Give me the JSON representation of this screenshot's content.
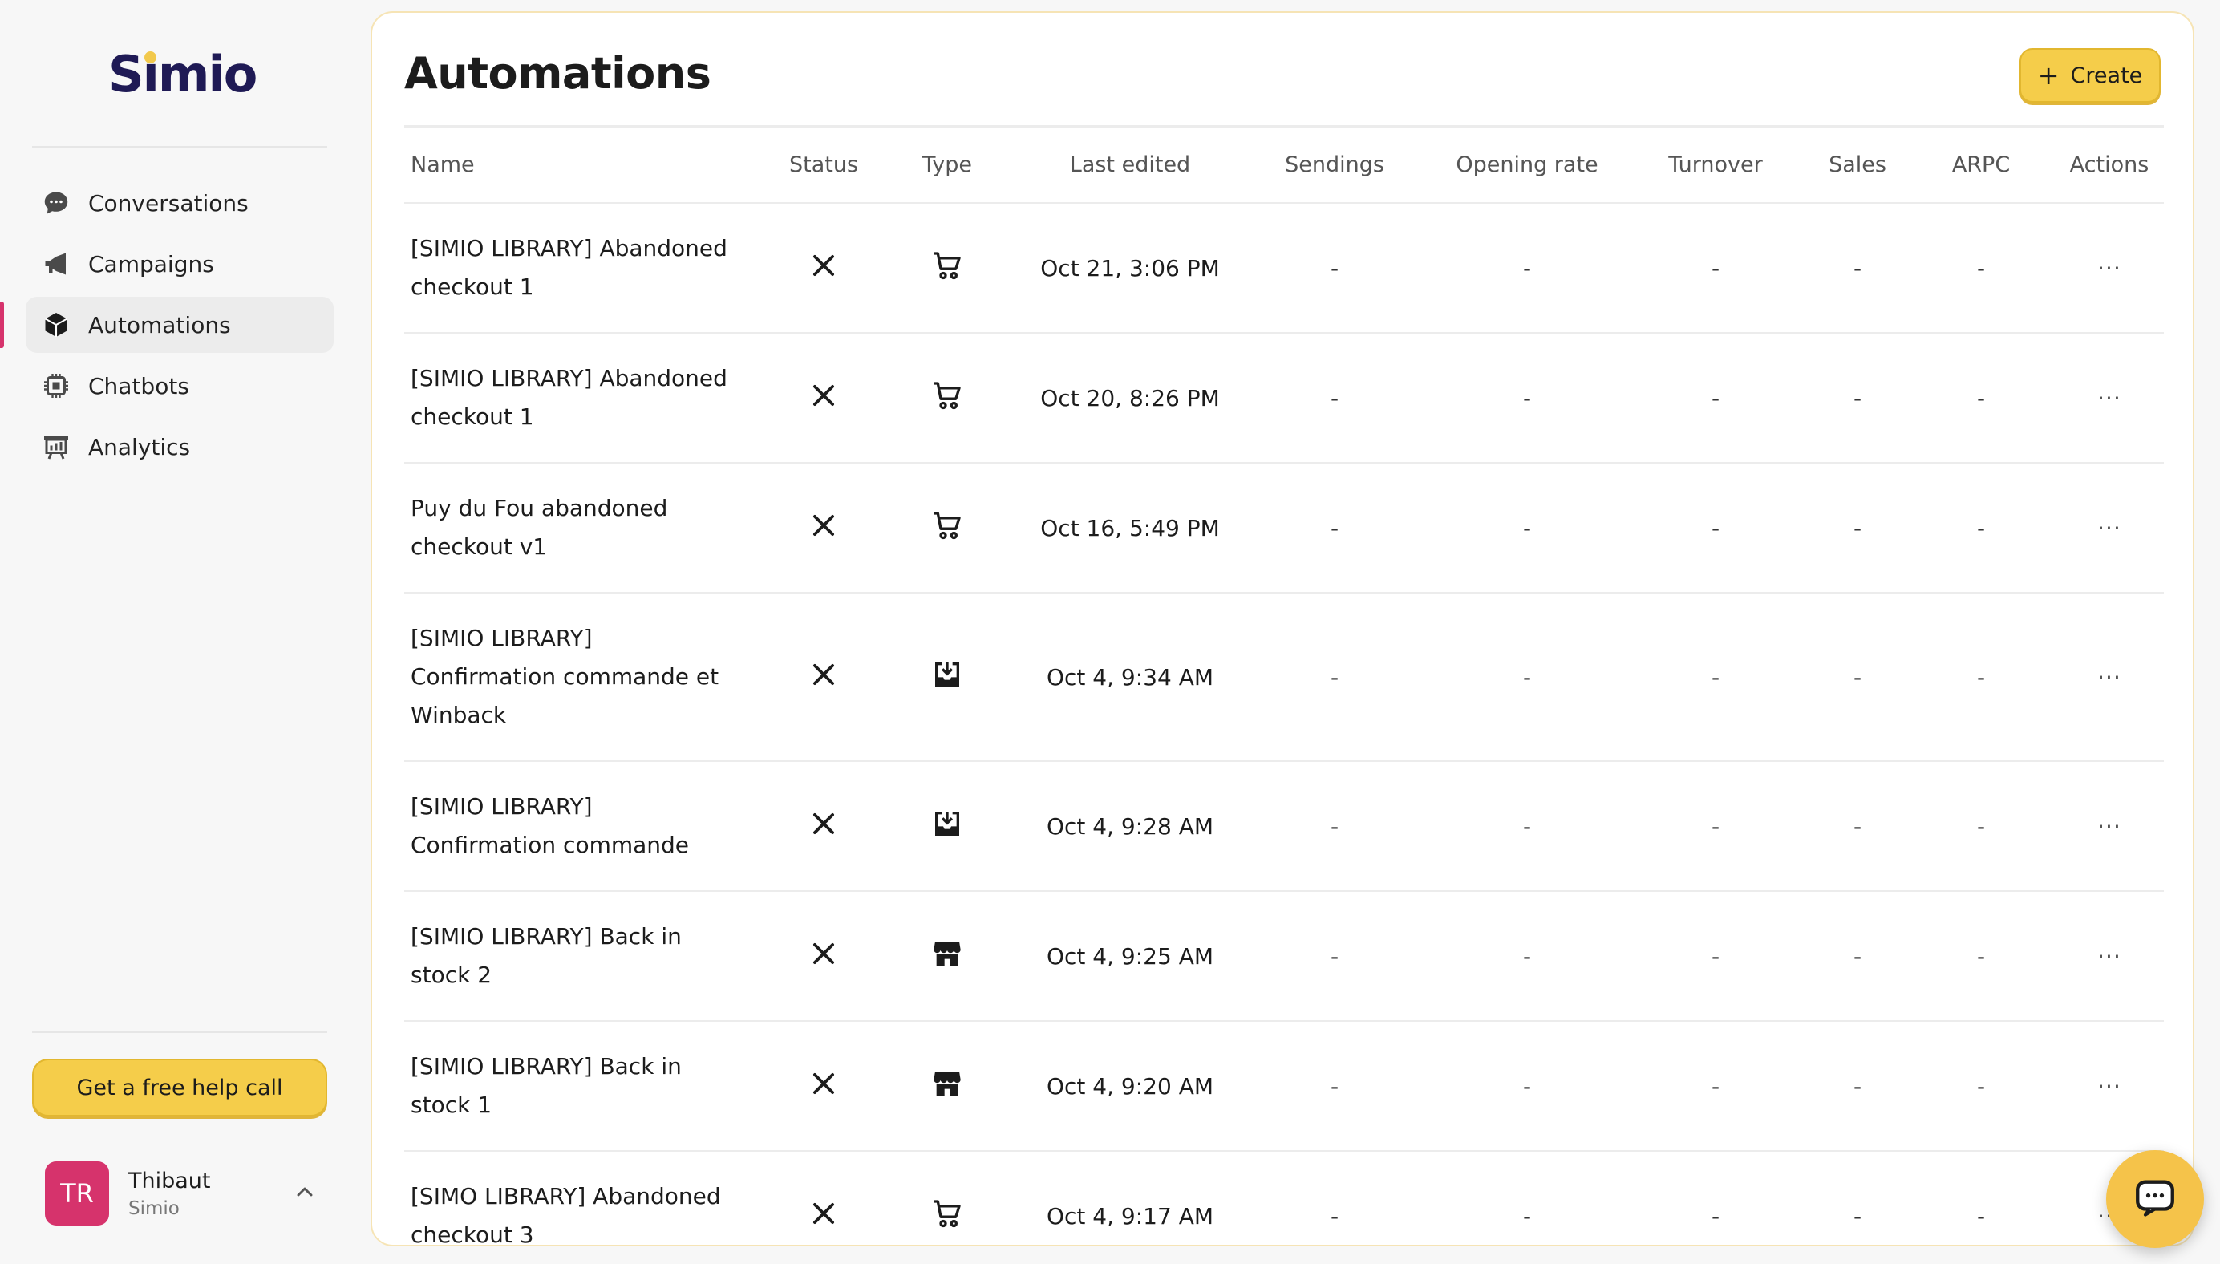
{
  "brand": {
    "name_pre": "S",
    "name_i": "ı",
    "name_post": "mio"
  },
  "colors": {
    "accent": "#f5cd4a",
    "avatar": "#d6336c",
    "active_marker": "#d6336c"
  },
  "sidebar": {
    "items": [
      {
        "label": "Conversations",
        "icon": "chat-bubble-icon",
        "active": false
      },
      {
        "label": "Campaigns",
        "icon": "megaphone-icon",
        "active": false
      },
      {
        "label": "Automations",
        "icon": "cube-icon",
        "active": true
      },
      {
        "label": "Chatbots",
        "icon": "chip-icon",
        "active": false
      },
      {
        "label": "Analytics",
        "icon": "chart-board-icon",
        "active": false
      }
    ],
    "help_button": "Get a free help call",
    "user": {
      "initials": "TR",
      "name": "Thibaut",
      "org": "Simio"
    }
  },
  "main": {
    "title": "Automations",
    "create_label": "Create",
    "columns": [
      "Name",
      "Status",
      "Type",
      "Last edited",
      "Sendings",
      "Opening rate",
      "Turnover",
      "Sales",
      "ARPC",
      "Actions"
    ],
    "rows": [
      {
        "name": "[SIMIO LIBRARY] Abandoned checkout 1",
        "status": "inactive",
        "type": "cart-icon",
        "edited": "Oct 21, 3:06 PM",
        "sendings": "-",
        "opening_rate": "-",
        "turnover": "-",
        "sales": "-",
        "arpc": "-",
        "actions": "···"
      },
      {
        "name": "[SIMIO LIBRARY] Abandoned checkout 1",
        "status": "inactive",
        "type": "cart-icon",
        "edited": "Oct 20, 8:26 PM",
        "sendings": "-",
        "opening_rate": "-",
        "turnover": "-",
        "sales": "-",
        "arpc": "-",
        "actions": "···"
      },
      {
        "name": "Puy du Fou abandoned checkout v1",
        "status": "inactive",
        "type": "cart-icon",
        "edited": "Oct 16, 5:49 PM",
        "sendings": "-",
        "opening_rate": "-",
        "turnover": "-",
        "sales": "-",
        "arpc": "-",
        "actions": "···"
      },
      {
        "name": "[SIMIO LIBRARY] Confirmation commande et Winback",
        "status": "inactive",
        "type": "inbox-download-icon",
        "edited": "Oct 4, 9:34 AM",
        "sendings": "-",
        "opening_rate": "-",
        "turnover": "-",
        "sales": "-",
        "arpc": "-",
        "actions": "···"
      },
      {
        "name": "[SIMIO LIBRARY] Confirmation commande",
        "status": "inactive",
        "type": "inbox-download-icon",
        "edited": "Oct 4, 9:28 AM",
        "sendings": "-",
        "opening_rate": "-",
        "turnover": "-",
        "sales": "-",
        "arpc": "-",
        "actions": "···"
      },
      {
        "name": "[SIMIO LIBRARY] Back in stock 2",
        "status": "inactive",
        "type": "store-icon",
        "edited": "Oct 4, 9:25 AM",
        "sendings": "-",
        "opening_rate": "-",
        "turnover": "-",
        "sales": "-",
        "arpc": "-",
        "actions": "···"
      },
      {
        "name": "[SIMIO LIBRARY] Back in stock 1",
        "status": "inactive",
        "type": "store-icon",
        "edited": "Oct 4, 9:20 AM",
        "sendings": "-",
        "opening_rate": "-",
        "turnover": "-",
        "sales": "-",
        "arpc": "-",
        "actions": "···"
      },
      {
        "name": "[SIMO LIBRARY] Abandoned checkout 3",
        "status": "inactive",
        "type": "cart-icon",
        "edited": "Oct 4, 9:17 AM",
        "sendings": "-",
        "opening_rate": "-",
        "turnover": "-",
        "sales": "-",
        "arpc": "-",
        "actions": "···"
      }
    ]
  },
  "chat_widget": {
    "icon": "chat-widget-icon"
  }
}
